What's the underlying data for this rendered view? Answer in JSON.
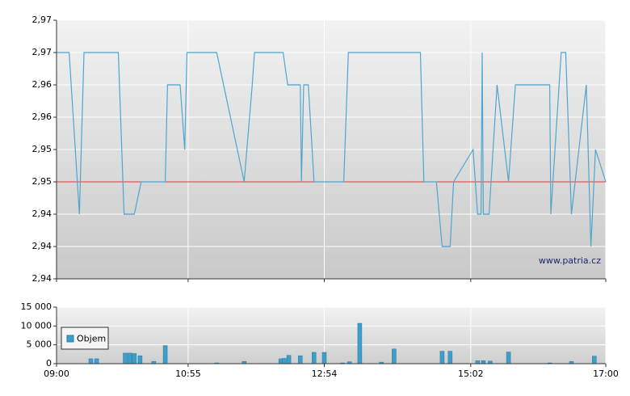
{
  "chart_data": [
    {
      "type": "line",
      "watermark": "www.patria.cz",
      "color": "#4fa6cc",
      "reference_line": 2.95,
      "reference_color": "#e03a3a",
      "x": [
        540,
        551,
        560,
        564,
        594,
        599,
        608,
        614,
        635,
        637,
        648,
        652,
        654,
        680,
        704,
        711,
        713,
        738,
        742,
        753,
        754,
        756,
        760,
        765,
        791,
        795,
        858,
        861,
        872,
        877,
        884,
        887,
        904,
        908,
        911,
        912,
        913,
        918,
        925,
        935,
        941,
        971,
        972,
        981,
        985,
        990,
        1003,
        1007,
        1011,
        1020
      ],
      "values": [
        2.97,
        2.97,
        2.945,
        2.97,
        2.97,
        2.945,
        2.945,
        2.95,
        2.95,
        2.965,
        2.965,
        2.955,
        2.97,
        2.97,
        2.95,
        2.965,
        2.97,
        2.97,
        2.965,
        2.965,
        2.95,
        2.965,
        2.965,
        2.95,
        2.95,
        2.97,
        2.97,
        2.95,
        2.95,
        2.94,
        2.94,
        2.95,
        2.955,
        2.945,
        2.945,
        2.97,
        2.945,
        2.945,
        2.965,
        2.95,
        2.965,
        2.965,
        2.945,
        2.97,
        2.97,
        2.945,
        2.965,
        2.94,
        2.955,
        2.95
      ],
      "xlim": [
        540,
        1020
      ],
      "ylim": [
        2.935,
        2.975
      ],
      "yticks": [
        {
          "value": 2.935,
          "label": "2,94"
        },
        {
          "value": 2.94,
          "label": "2,94"
        },
        {
          "value": 2.945,
          "label": "2,94"
        },
        {
          "value": 2.95,
          "label": "2,95"
        },
        {
          "value": 2.955,
          "label": "2,95"
        },
        {
          "value": 2.96,
          "label": "2,96"
        },
        {
          "value": 2.965,
          "label": "2,96"
        },
        {
          "value": 2.97,
          "label": "2,97"
        },
        {
          "value": 2.975,
          "label": "2,97"
        }
      ],
      "grid": true
    },
    {
      "type": "bar",
      "legend": "Objem",
      "color": "#3f9dc9",
      "x": [
        570,
        575,
        600,
        604,
        608,
        613,
        625,
        635,
        680,
        704,
        736,
        739,
        743,
        753,
        765,
        774,
        790,
        796,
        805,
        824,
        835,
        877,
        884,
        908,
        913,
        919,
        935,
        971,
        990,
        1010
      ],
      "values": [
        1300,
        1300,
        2800,
        2800,
        2700,
        2100,
        600,
        4800,
        200,
        600,
        1300,
        1400,
        2200,
        2100,
        3000,
        3000,
        200,
        500,
        10700,
        400,
        3900,
        3300,
        3300,
        800,
        800,
        700,
        3100,
        200,
        600,
        2000
      ],
      "xlim": [
        540,
        1020
      ],
      "ylim": [
        0,
        15000
      ],
      "yticks": [
        0,
        {
          "value": 5000,
          "label": "5 000"
        },
        {
          "value": 10000,
          "label": "10 000"
        },
        {
          "value": 15000,
          "label": "15 000"
        }
      ],
      "xticks": [
        {
          "value": 540,
          "label": "09:00"
        },
        {
          "value": 655,
          "label": "10:55"
        },
        {
          "value": 774,
          "label": "12:54"
        },
        {
          "value": 902,
          "label": "15:02"
        },
        {
          "value": 1020,
          "label": "17:00"
        }
      ],
      "grid": true
    }
  ]
}
